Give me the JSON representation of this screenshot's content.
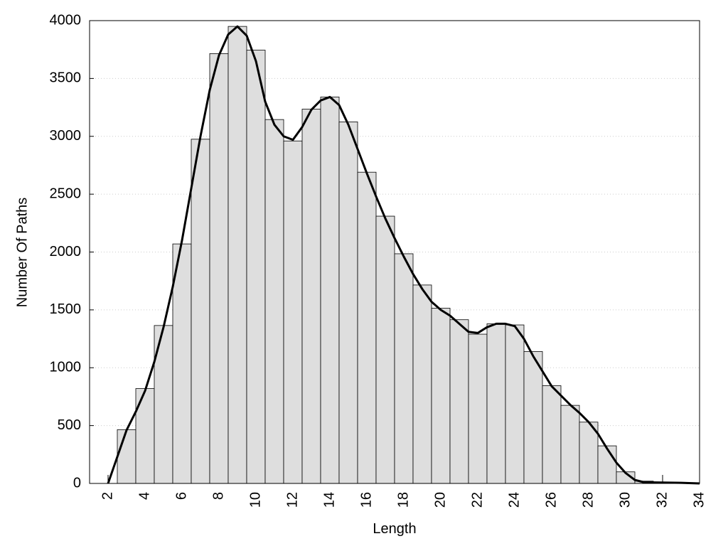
{
  "chart_data": {
    "type": "histogram",
    "xlabel": "Length",
    "ylabel": "Number Of Paths",
    "bins": [
      2.5,
      3.5,
      4.5,
      5.5,
      6.5,
      7.5,
      8.5,
      9.5,
      10.5,
      11.5,
      12.5,
      13.5,
      14.5,
      15.5,
      16.5,
      17.5,
      18.5,
      19.5,
      20.5,
      21.5,
      22.5,
      23.5,
      24.5,
      25.5,
      26.5,
      27.5,
      28.5,
      29.5,
      30.5,
      31.5,
      32.5,
      33.5
    ],
    "counts": [
      465,
      820,
      1365,
      2070,
      2975,
      3715,
      3950,
      3745,
      3145,
      2960,
      3235,
      3340,
      3125,
      2690,
      2310,
      1985,
      1715,
      1515,
      1415,
      1290,
      1380,
      1370,
      1140,
      845,
      675,
      530,
      325,
      100,
      20,
      10,
      5
    ],
    "color": "#dedede",
    "line": {
      "color": "#000000",
      "x": [
        2,
        2.5,
        3,
        3.5,
        4,
        4.5,
        5,
        5.5,
        6,
        6.5,
        7,
        7.5,
        8,
        8.5,
        9,
        9.5,
        10,
        10.5,
        11,
        11.5,
        12,
        12.5,
        13,
        13.5,
        14,
        14.5,
        15,
        15.5,
        16,
        16.5,
        17,
        17.5,
        18,
        18.5,
        19,
        19.5,
        20,
        20.5,
        21,
        21.5,
        22,
        22.5,
        23,
        23.5,
        24,
        24.5,
        25,
        25.5,
        26,
        26.5,
        27,
        27.5,
        28,
        28.5,
        29,
        29.5,
        30,
        30.5,
        31,
        32,
        33,
        34
      ],
      "values": [
        0,
        230,
        460,
        620,
        800,
        1050,
        1350,
        1700,
        2100,
        2550,
        3000,
        3400,
        3700,
        3880,
        3950,
        3870,
        3650,
        3300,
        3100,
        3000,
        2970,
        3080,
        3230,
        3310,
        3340,
        3270,
        3100,
        2890,
        2680,
        2480,
        2290,
        2120,
        1960,
        1810,
        1680,
        1570,
        1500,
        1450,
        1380,
        1310,
        1300,
        1350,
        1380,
        1380,
        1360,
        1250,
        1100,
        970,
        840,
        760,
        680,
        610,
        530,
        430,
        300,
        180,
        90,
        30,
        10,
        8,
        5,
        0
      ]
    },
    "xlim": [
      1,
      34
    ],
    "xticks": [
      2,
      4,
      6,
      8,
      10,
      12,
      14,
      16,
      18,
      20,
      22,
      24,
      26,
      28,
      30,
      32,
      34
    ],
    "ylim": [
      0,
      4000
    ],
    "yticks": [
      0,
      500,
      1000,
      1500,
      2000,
      2500,
      3000,
      3500,
      4000
    ],
    "grid": true
  }
}
